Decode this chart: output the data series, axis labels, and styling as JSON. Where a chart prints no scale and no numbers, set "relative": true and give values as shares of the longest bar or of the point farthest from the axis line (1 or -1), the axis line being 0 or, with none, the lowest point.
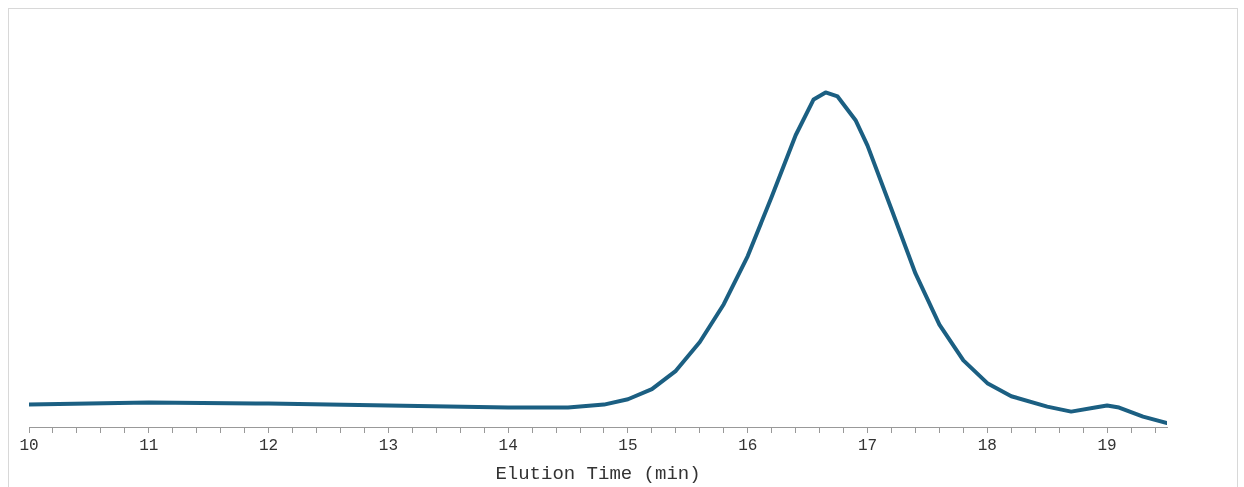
{
  "chart_data": {
    "type": "line",
    "relative": true,
    "xlabel": "Elution Time (min)",
    "xlim": [
      10,
      19.5
    ],
    "xticks": [
      10,
      {
        "value": 10.2,
        "label": null
      },
      {
        "value": 10.4,
        "label": null
      },
      {
        "value": 10.6,
        "label": null
      },
      {
        "value": 10.8,
        "label": null
      },
      11,
      {
        "value": 11.2,
        "label": null
      },
      {
        "value": 11.4,
        "label": null
      },
      {
        "value": 11.6,
        "label": null
      },
      {
        "value": 11.8,
        "label": null
      },
      12,
      {
        "value": 12.2,
        "label": null
      },
      {
        "value": 12.4,
        "label": null
      },
      {
        "value": 12.6,
        "label": null
      },
      {
        "value": 12.8,
        "label": null
      },
      13,
      {
        "value": 13.2,
        "label": null
      },
      {
        "value": 13.4,
        "label": null
      },
      {
        "value": 13.6,
        "label": null
      },
      {
        "value": 13.8,
        "label": null
      },
      14,
      {
        "value": 14.2,
        "label": null
      },
      {
        "value": 14.4,
        "label": null
      },
      {
        "value": 14.6,
        "label": null
      },
      {
        "value": 14.8,
        "label": null
      },
      15,
      {
        "value": 15.2,
        "label": null
      },
      {
        "value": 15.4,
        "label": null
      },
      {
        "value": 15.6,
        "label": null
      },
      {
        "value": 15.8,
        "label": null
      },
      16,
      {
        "value": 16.2,
        "label": null
      },
      {
        "value": 16.4,
        "label": null
      },
      {
        "value": 16.6,
        "label": null
      },
      {
        "value": 16.8,
        "label": null
      },
      17,
      {
        "value": 17.2,
        "label": null
      },
      {
        "value": 17.4,
        "label": null
      },
      {
        "value": 17.6,
        "label": null
      },
      {
        "value": 17.8,
        "label": null
      },
      18,
      {
        "value": 18.2,
        "label": null
      },
      {
        "value": 18.4,
        "label": null
      },
      {
        "value": 18.6,
        "label": null
      },
      {
        "value": 18.8,
        "label": null
      },
      19,
      {
        "value": 19.2,
        "label": null
      },
      {
        "value": 19.4,
        "label": null
      }
    ],
    "grid": false,
    "legend": false,
    "marker": "none",
    "line_style": "solid",
    "tick_labels": "x",
    "series": [
      {
        "color": "#1b5f82",
        "x": [
          10,
          11,
          12,
          13,
          14,
          14.5,
          14.8,
          15,
          15.2,
          15.4,
          15.6,
          15.8,
          16,
          16.2,
          16.4,
          16.55,
          16.65,
          16.75,
          16.9,
          17,
          17.2,
          17.4,
          17.6,
          17.8,
          18,
          18.2,
          18.5,
          18.7,
          18.9,
          19,
          19.1,
          19.3,
          19.5
        ],
        "values": [
          0.067,
          0.073,
          0.07,
          0.064,
          0.058,
          0.058,
          0.067,
          0.083,
          0.113,
          0.168,
          0.254,
          0.367,
          0.511,
          0.688,
          0.872,
          0.979,
          1,
          0.988,
          0.917,
          0.841,
          0.651,
          0.459,
          0.306,
          0.199,
          0.131,
          0.092,
          0.061,
          0.046,
          0.058,
          0.064,
          0.058,
          0.031,
          0.012
        ]
      }
    ]
  }
}
